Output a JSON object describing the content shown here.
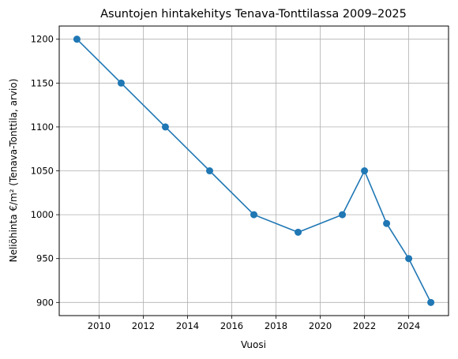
{
  "chart_data": {
    "type": "line",
    "title": "Asuntojen hintakehitys Tenava-Tonttilassa 2009–2025",
    "xlabel": "Vuosi",
    "ylabel": "Neliöhinta €/m² (Tenava-Tonttila, arvio)",
    "x": [
      2009,
      2011,
      2013,
      2015,
      2017,
      2019,
      2021,
      2022,
      2023,
      2024,
      2025
    ],
    "y": [
      1200,
      1150,
      1100,
      1050,
      1000,
      980,
      1000,
      1050,
      990,
      950,
      900
    ],
    "xlim": [
      2008.2,
      2025.8
    ],
    "ylim": [
      885,
      1215
    ],
    "xticks": [
      "2010",
      "2012",
      "2014",
      "2016",
      "2018",
      "2020",
      "2022",
      "2024"
    ],
    "yticks": [
      "900",
      "950",
      "1000",
      "1050",
      "1100",
      "1150",
      "1200"
    ],
    "grid": true,
    "color": "#1f77b4",
    "marker": "circle"
  }
}
